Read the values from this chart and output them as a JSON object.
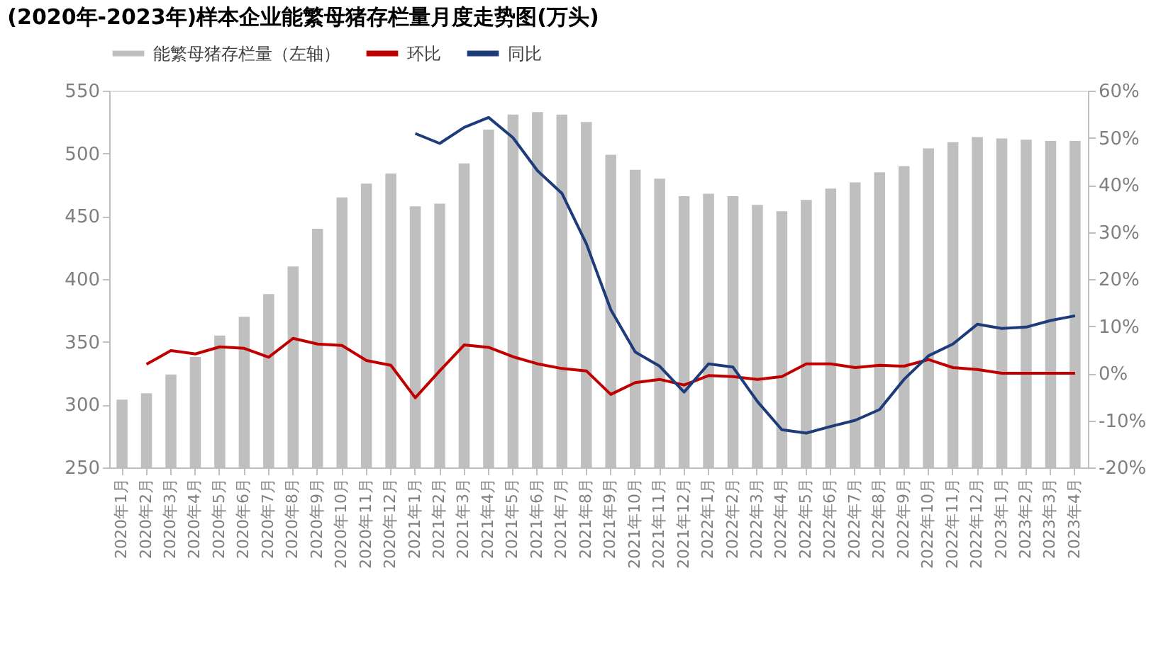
{
  "chart_data": {
    "type": "bar",
    "title": "(2020年-2023年)样本企业能繁母猪存栏量月度走势图(万头)",
    "categories": [
      "2020年1月",
      "2020年2月",
      "2020年3月",
      "2020年4月",
      "2020年5月",
      "2020年6月",
      "2020年7月",
      "2020年8月",
      "2020年9月",
      "2020年10月",
      "2020年11月",
      "2020年12月",
      "2021年1月",
      "2021年2月",
      "2021年3月",
      "2021年4月",
      "2021年5月",
      "2021年6月",
      "2021年7月",
      "2021年8月",
      "2021年9月",
      "2021年10月",
      "2021年11月",
      "2021年12月",
      "2022年1月",
      "2022年2月",
      "2022年3月",
      "2022年4月",
      "2022年5月",
      "2022年6月",
      "2022年7月",
      "2022年8月",
      "2022年9月",
      "2022年10月",
      "2022年11月",
      "2022年12月",
      "2023年1月",
      "2023年2月",
      "2023年3月",
      "2023年4月"
    ],
    "series": [
      {
        "name": "能繁母猪存栏量（左轴）",
        "color": "#bfbfbf",
        "values": [
          304,
          309,
          324,
          338,
          355,
          370,
          388,
          410,
          440,
          465,
          476,
          484,
          458,
          460,
          492,
          519,
          531,
          533,
          531,
          525,
          499,
          487,
          480,
          466,
          468,
          466,
          459,
          454,
          463,
          472,
          477,
          485,
          490,
          504,
          509,
          513,
          512,
          511,
          510,
          510
        ]
      },
      {
        "name": "环比",
        "type": "line",
        "axis": "y2",
        "color": "#c00000",
        "values": [
          null,
          1.9,
          4.8,
          4.1,
          5.6,
          5.3,
          3.4,
          7.4,
          6.2,
          5.9,
          2.7,
          1.7,
          -5.2,
          0.5,
          6.0,
          5.5,
          3.5,
          2.0,
          1.0,
          0.5,
          -4.5,
          -2.0,
          -1.3,
          -2.5,
          -0.5,
          -0.7,
          -1.3,
          -0.7,
          2.0,
          2.0,
          1.2,
          1.7,
          1.5,
          2.9,
          1.2,
          0.8,
          0,
          0,
          0,
          0
        ]
      },
      {
        "name": "同比",
        "type": "line",
        "axis": "y2",
        "color": "#1f3c7a",
        "values": [
          null,
          null,
          null,
          null,
          null,
          null,
          null,
          null,
          null,
          null,
          null,
          null,
          50.9,
          48.8,
          52.2,
          54.3,
          50,
          43,
          38.2,
          27.5,
          13.5,
          4.5,
          1.5,
          -4,
          2,
          1.3,
          -6,
          -12,
          -12.7,
          -11.3,
          -10,
          -7.7,
          -1.3,
          3.7,
          6.2,
          10.4,
          9.5,
          9.8,
          11.2,
          12.2
        ]
      }
    ],
    "ylim": [
      250,
      550
    ],
    "yticks": [
      250,
      300,
      350,
      400,
      450,
      500,
      550
    ],
    "y2lim": [
      -20,
      60
    ],
    "y2ticks": [
      {
        "value": -20,
        "label": "-20%"
      },
      {
        "value": -10,
        "label": "-10%"
      },
      {
        "value": 0,
        "label": "0%"
      },
      {
        "value": 10,
        "label": "10%"
      },
      {
        "value": 20,
        "label": "20%"
      },
      {
        "value": 30,
        "label": "30%"
      },
      {
        "value": 40,
        "label": "40%"
      },
      {
        "value": 50,
        "label": "50%"
      },
      {
        "value": 60,
        "label": "60%"
      }
    ],
    "grid": false,
    "legend": "top",
    "marker": "none",
    "line_style": "solid"
  }
}
